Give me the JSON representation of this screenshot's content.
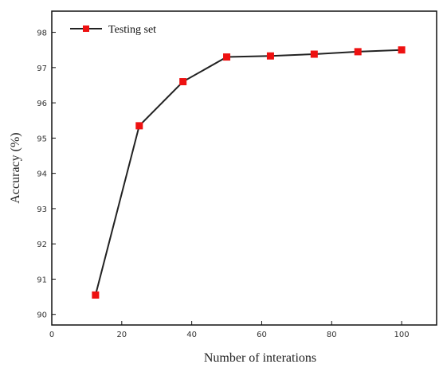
{
  "chart_data": {
    "type": "line",
    "title": "",
    "xlabel": "Number of interations",
    "ylabel": "Accuracy (%)",
    "xlim": [
      0,
      110
    ],
    "ylim": [
      89.7,
      98.6
    ],
    "xticks": [
      0,
      20,
      40,
      60,
      80,
      100
    ],
    "yticks": [
      90,
      91,
      92,
      93,
      94,
      95,
      96,
      97,
      98
    ],
    "grid": false,
    "legend_position": "top-left",
    "series": [
      {
        "name": "Testing set",
        "color": "#222222",
        "marker": "square",
        "marker_color": "#ee1111",
        "x": [
          12.5,
          25,
          37.5,
          50,
          62.5,
          75,
          87.5,
          100
        ],
        "y": [
          90.55,
          95.35,
          96.6,
          97.3,
          97.33,
          97.38,
          97.45,
          97.5
        ]
      }
    ]
  }
}
